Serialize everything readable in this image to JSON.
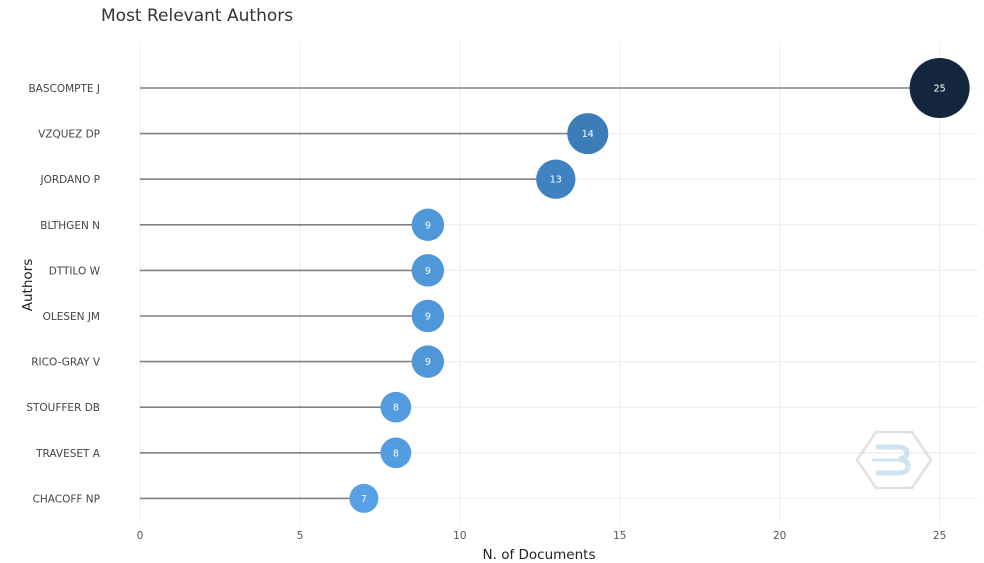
{
  "colors": {
    "low": "#56A1E6",
    "mid": "#3A7DB8",
    "high": "#14263D",
    "stem": "#808080",
    "grid": "#ECECEC"
  },
  "chart_data": {
    "type": "lollipop",
    "title": "Most Relevant Authors",
    "xlabel": "N. of Documents",
    "ylabel": "Authors",
    "xlim": [
      0,
      26.2
    ],
    "xticks": [
      0,
      5,
      10,
      15,
      20,
      25
    ],
    "grid": true,
    "legend": "none",
    "categories": [
      "BASCOMPTE J",
      "VZQUEZ DP",
      "JORDANO P",
      "BLTHGEN N",
      "DTTILO W",
      "OLESEN JM",
      "RICO-GRAY V",
      "STOUFFER DB",
      "TRAVESET A",
      "CHACOFF NP"
    ],
    "values": [
      25,
      14,
      13,
      9,
      9,
      9,
      9,
      8,
      8,
      7
    ]
  }
}
